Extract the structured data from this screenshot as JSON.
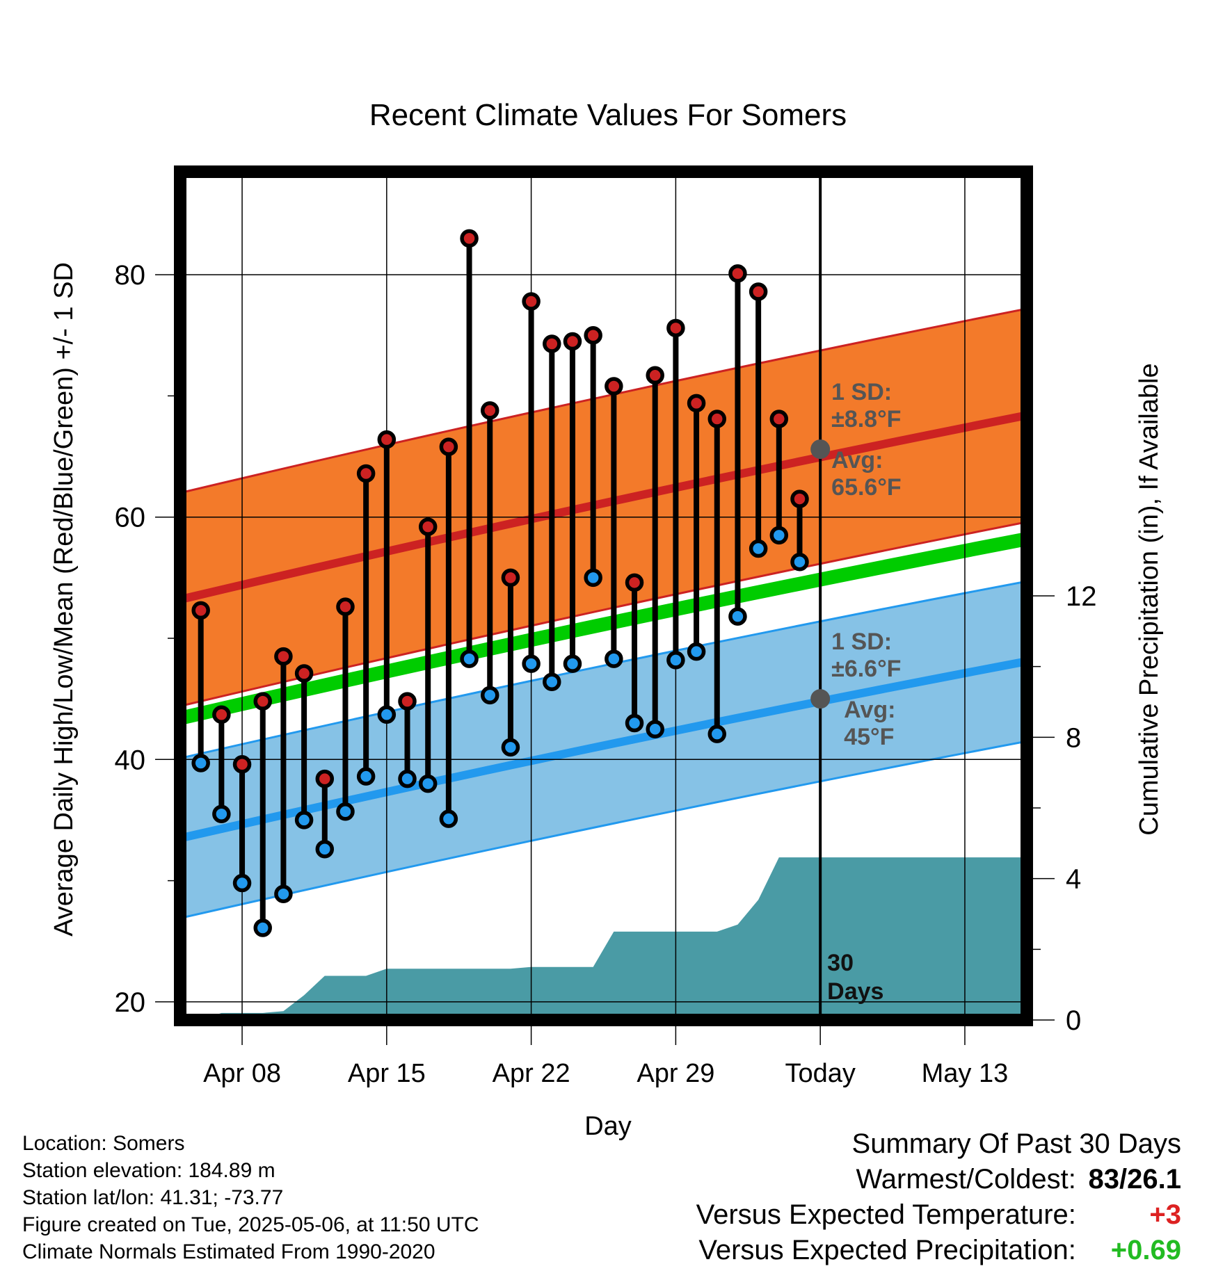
{
  "chart_data": {
    "type": "line",
    "title": "Recent Climate Values For Somers",
    "xlabel": "Day",
    "ylabel": "Average Daily High/Low/Mean (Red/Blue/Green) +/- 1 SD",
    "y2label": "Cumulative Precipitation (in), If Available",
    "xlim": [
      "2025-04-05",
      "2025-05-16"
    ],
    "ylim": [
      18.5,
      88.5
    ],
    "y_ticks": [
      20,
      40,
      60,
      80
    ],
    "y_minor_ticks": [
      30,
      50,
      70
    ],
    "y2lim": [
      0,
      24
    ],
    "y2_ticks": [
      0,
      4,
      8,
      12
    ],
    "x_ticks": [
      {
        "date": "2025-04-08",
        "label": "Apr 08"
      },
      {
        "date": "2025-04-15",
        "label": "Apr 15"
      },
      {
        "date": "2025-04-22",
        "label": "Apr 22"
      },
      {
        "date": "2025-04-29",
        "label": "Apr 29"
      },
      {
        "date": "2025-05-06",
        "label": "Today"
      },
      {
        "date": "2025-05-13",
        "label": "May 13"
      }
    ],
    "grid": true,
    "dates": [
      "2025-04-06",
      "2025-04-07",
      "2025-04-08",
      "2025-04-09",
      "2025-04-10",
      "2025-04-11",
      "2025-04-12",
      "2025-04-13",
      "2025-04-14",
      "2025-04-15",
      "2025-04-16",
      "2025-04-17",
      "2025-04-18",
      "2025-04-19",
      "2025-04-20",
      "2025-04-21",
      "2025-04-22",
      "2025-04-23",
      "2025-04-24",
      "2025-04-25",
      "2025-04-26",
      "2025-04-27",
      "2025-04-28",
      "2025-04-29",
      "2025-04-30",
      "2025-05-01",
      "2025-05-02",
      "2025-05-03",
      "2025-05-04",
      "2025-05-05"
    ],
    "series": [
      {
        "name": "High",
        "color": "#cc2222",
        "values": [
          52.3,
          43.7,
          39.6,
          44.8,
          48.5,
          47.1,
          38.4,
          52.6,
          63.6,
          66.4,
          44.8,
          59.2,
          65.8,
          83.0,
          68.8,
          55.0,
          77.8,
          74.3,
          74.5,
          75.0,
          70.8,
          54.6,
          71.7,
          75.6,
          69.4,
          68.1,
          80.1,
          78.6,
          68.1,
          61.5
        ]
      },
      {
        "name": "Low",
        "color": "#2299ee",
        "values": [
          39.7,
          35.5,
          29.8,
          26.1,
          28.9,
          35.0,
          32.6,
          35.7,
          38.6,
          43.7,
          38.4,
          38.0,
          35.1,
          48.3,
          45.3,
          41.0,
          47.9,
          46.4,
          47.9,
          55.0,
          48.3,
          43.0,
          42.5,
          48.2,
          48.9,
          42.1,
          51.8,
          57.4,
          58.5,
          56.3
        ]
      }
    ],
    "normal_high": {
      "avg_start": 53.2,
      "avg_end": 68.4,
      "sd": 8.8,
      "color": "#f37a2a",
      "line_color": "#cc2222"
    },
    "normal_low": {
      "avg_start": 33.5,
      "avg_end": 48.1,
      "sd": 6.6,
      "color": "#86c2e6",
      "line_color": "#2299ee"
    },
    "normal_mean": {
      "start": 43.4,
      "end": 58.2,
      "color": "#00cc00"
    },
    "precipitation": {
      "color": "#4a9ba5",
      "points": [
        [
          "2025-04-06",
          0.0
        ],
        [
          "2025-04-07",
          0.2
        ],
        [
          "2025-04-08",
          0.2
        ],
        [
          "2025-04-09",
          0.2
        ],
        [
          "2025-04-10",
          0.25
        ],
        [
          "2025-04-11",
          0.7
        ],
        [
          "2025-04-12",
          1.25
        ],
        [
          "2025-04-13",
          1.25
        ],
        [
          "2025-04-14",
          1.25
        ],
        [
          "2025-04-15",
          1.45
        ],
        [
          "2025-04-16",
          1.45
        ],
        [
          "2025-04-17",
          1.45
        ],
        [
          "2025-04-18",
          1.45
        ],
        [
          "2025-04-19",
          1.45
        ],
        [
          "2025-04-20",
          1.45
        ],
        [
          "2025-04-21",
          1.45
        ],
        [
          "2025-04-22",
          1.5
        ],
        [
          "2025-04-23",
          1.5
        ],
        [
          "2025-04-24",
          1.5
        ],
        [
          "2025-04-25",
          1.5
        ],
        [
          "2025-04-26",
          2.5
        ],
        [
          "2025-04-27",
          2.5
        ],
        [
          "2025-04-28",
          2.5
        ],
        [
          "2025-04-29",
          2.5
        ],
        [
          "2025-04-30",
          2.5
        ],
        [
          "2025-05-01",
          2.5
        ],
        [
          "2025-05-02",
          2.7
        ],
        [
          "2025-05-03",
          3.4
        ],
        [
          "2025-05-04",
          4.6
        ],
        [
          "2025-05-05",
          4.6
        ],
        [
          "2025-05-06",
          4.6
        ],
        [
          "2025-05-16",
          4.6
        ]
      ]
    },
    "today": "2025-05-06",
    "annotations": {
      "high_sd_label": "1 SD:",
      "high_sd_value": "±8.8°F",
      "high_avg_label": "Avg:",
      "high_avg_value": "65.6°F",
      "low_sd_label": "1 SD:",
      "low_sd_value": "±6.6°F",
      "low_avg_label": "Avg:",
      "low_avg_value": "45°F",
      "days_line1": "30",
      "days_line2": "Days"
    }
  },
  "footer": {
    "location": "Location: Somers",
    "elevation": "Station elevation: 184.89 m",
    "latlon": "Station lat/lon: 41.31; -73.77",
    "created": "Figure created on Tue, 2025-05-06, at 11:50 UTC",
    "normals": "Climate Normals Estimated From 1990-2020"
  },
  "summary": {
    "title": "Summary Of Past 30 Days",
    "warmest_label": "Warmest/Coldest:",
    "warmest_value": "83/26.1",
    "temp_label": "Versus Expected Temperature:",
    "temp_value": "+3",
    "temp_color": "#dd2222",
    "precip_label": "Versus Expected Precipitation:",
    "precip_value": "+0.69",
    "precip_color": "#22bb22"
  }
}
